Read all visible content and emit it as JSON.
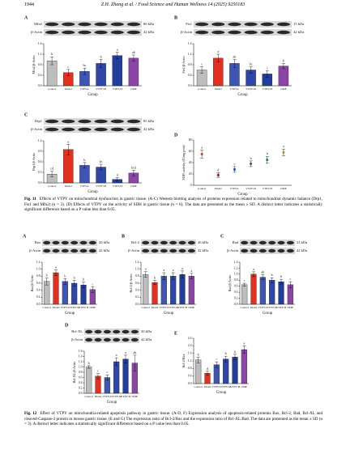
{
  "header": {
    "page": "1944",
    "journal": "Z.H. Zhang et al. / Food Science and Human Wellness 14 (2025) 9250183"
  },
  "figures": [
    {
      "label": "Fig. 11",
      "caption": "Effects of VTPY on mitochondrial dysfunction in gastric tissue. (A-C) Western blotting analysis of proteins expression related to mitochondrial dynamic balance (Drp1, Fis1 and Mfn2) (n = 3). (D) Effects of VTPY on the activity of SDH in gastric tissue (n = 6). The data are presented as the mean ± SD. A distinct letter indicates a statistically significant difference based on a P value less than 0.05."
    },
    {
      "label": "Fig. 12",
      "caption": "Effect of VTPY on mitochondria-related apoptosis pathway in gastric tissue. (A-D, F) Expression analysis of apoptosis-related proteins Bax, Bcl-2, Bad, Bcl-XL and cleaved-Caspase-3 protein in mouse gastric tissue. (E and G) The expression ratio of Bcl-2/Bax and the expression ratio of Bcl-XL/Bad. The data are presented as the mean ± SD (n = 3). A distinct letter indicates a statistically significant difference based on a P value less than 0.05."
    }
  ],
  "chart_data": [
    {
      "type": "bar",
      "panel": "A",
      "blots": [
        {
          "label": "Mfn2",
          "size": "86 kDa"
        },
        {
          "label": "β-Actin",
          "size": "42 kDa"
        }
      ],
      "ylabel": "Mfn2/β-Actin",
      "xlabel": "Group",
      "categories": [
        "Control",
        "Model",
        "VTPY-L",
        "VTPY-M",
        "VTPY-H",
        "OME"
      ],
      "values": [
        0.95,
        0.5,
        0.55,
        0.85,
        1.15,
        1.05
      ],
      "errors": [
        0.15,
        0.12,
        0.12,
        0.15,
        0.12,
        0.12
      ],
      "letters": [
        "b",
        "c",
        "bc",
        "b",
        "a",
        "ab"
      ],
      "colors": [
        "#bdbdbd",
        "#e3301f",
        "#3f55b3",
        "#2f47a8",
        "#223e9c",
        "#8b45a6"
      ],
      "ylim": [
        0,
        1.6
      ],
      "yticks": [
        {
          "value": 0,
          "label": "0.0"
        },
        0.4,
        0.8,
        1.2,
        1.6
      ]
    },
    {
      "type": "bar",
      "panel": "B",
      "blots": [
        {
          "label": "Fis1",
          "size": "15 kDa"
        },
        {
          "label": "β-Actin",
          "size": "42 kDa"
        }
      ],
      "ylabel": "Fis1/β-Actin",
      "xlabel": "Group",
      "categories": [
        "Control",
        "Model",
        "VTPY-L",
        "VTPY-M",
        "VTPY-H",
        "OME"
      ],
      "values": [
        0.6,
        1.05,
        0.85,
        0.6,
        0.45,
        0.75
      ],
      "errors": [
        0.12,
        0.15,
        0.15,
        0.12,
        0.12,
        0.1
      ],
      "letters": [
        "c",
        "a",
        "ab",
        "bc",
        "c",
        "b"
      ],
      "colors": [
        "#bdbdbd",
        "#e3301f",
        "#3f55b3",
        "#2f47a8",
        "#223e9c",
        "#8b45a6"
      ],
      "ylim": [
        0,
        1.6
      ],
      "yticks": [
        {
          "value": 0,
          "label": "0.0"
        },
        0.4,
        0.8,
        1.2,
        1.6
      ]
    },
    {
      "type": "bar",
      "panel": "C",
      "blots": [
        {
          "label": "Drp1",
          "size": "83 kDa"
        },
        {
          "label": "β-Actin",
          "size": "42 kDa"
        }
      ],
      "ylabel": "Drp1/β-Actin",
      "xlabel": "Group",
      "categories": [
        "Control",
        "Model",
        "VTPY-L",
        "VTPY-M",
        "VTPY-H",
        "OME"
      ],
      "values": [
        0.25,
        0.95,
        0.5,
        0.45,
        0.1,
        0.28
      ],
      "errors": [
        0.08,
        0.15,
        0.08,
        0.08,
        0.05,
        0.08
      ],
      "letters": [
        "cd",
        "a",
        "b",
        "bc",
        "d",
        "bcd"
      ],
      "colors": [
        "#bdbdbd",
        "#e3301f",
        "#3f55b3",
        "#2f47a8",
        "#223e9c",
        "#8b45a6"
      ],
      "ylim": [
        0,
        1.2
      ],
      "yticks": [
        {
          "value": 0,
          "label": "0.0"
        },
        0.3,
        0.6,
        0.9,
        1.2
      ]
    },
    {
      "type": "dot",
      "panel": "D",
      "ylabel": "SDH activity (U/mg prot)",
      "xlabel": "Group",
      "categories": [
        "Control",
        "Model",
        "VTPY-L",
        "VTPY-M",
        "VTPY-H",
        "OME"
      ],
      "values": [
        55,
        18,
        28,
        38,
        45,
        58
      ],
      "errors": [
        7,
        4,
        5,
        5,
        6,
        6
      ],
      "letters": [
        "a",
        "d",
        "c",
        "b",
        "b",
        "a"
      ],
      "colors": [
        "#e8603c",
        "#d9262a",
        "#3d6fc4",
        "#7b5bb8",
        "#33a0a0",
        "#e0b030"
      ],
      "ylim": [
        0,
        80
      ],
      "yticks": [
        0,
        20,
        40,
        60,
        80
      ]
    },
    {
      "type": "bar",
      "panel": "A",
      "blots": [
        {
          "label": "Bax",
          "size": "20 kDa"
        },
        {
          "label": "β-Actin",
          "size": "42 kDa"
        }
      ],
      "ylabel": "Bax/β-Actin",
      "xlabel": "Group",
      "categories": [
        "Control",
        "Model",
        "VTPY-L",
        "VTPY-M",
        "VTPY-H",
        "OME"
      ],
      "values": [
        0.65,
        0.9,
        0.65,
        0.6,
        0.55,
        0.42
      ],
      "errors": [
        0.1,
        0.08,
        0.08,
        0.08,
        0.08,
        0.08
      ],
      "letters": [
        "b",
        "a",
        "b",
        "b",
        "b",
        "c"
      ],
      "colors": [
        "#bdbdbd",
        "#e3301f",
        "#3f55b3",
        "#2f47a8",
        "#223e9c",
        "#8b45a6"
      ],
      "ylim": [
        0,
        1.2
      ],
      "yticks": [
        {
          "value": 0,
          "label": "0.0"
        },
        0.2,
        0.4,
        0.6,
        0.8,
        {
          "value": 1,
          "label": "1.0"
        },
        1.2
      ]
    },
    {
      "type": "bar",
      "panel": "B",
      "blots": [
        {
          "label": "Bcl-2",
          "size": "26 kDa"
        },
        {
          "label": "β-Actin",
          "size": "42 kDa"
        }
      ],
      "ylabel": "Bcl-2/β-Actin",
      "xlabel": "Group",
      "categories": [
        "Control",
        "Model",
        "VTPY-L",
        "VTPY-M",
        "VTPY-H",
        "OME"
      ],
      "values": [
        0.85,
        0.62,
        0.8,
        0.8,
        0.85,
        0.8
      ],
      "errors": [
        0.08,
        0.06,
        0.1,
        0.1,
        0.1,
        0.08
      ],
      "letters": [
        "a",
        "b",
        "a",
        "a",
        "a",
        "a"
      ],
      "colors": [
        "#bdbdbd",
        "#e3301f",
        "#3f55b3",
        "#2f47a8",
        "#223e9c",
        "#8b45a6"
      ],
      "ylim": [
        0,
        1.2
      ],
      "yticks": [
        {
          "value": 0,
          "label": "0.0"
        },
        0.2,
        0.4,
        0.6,
        0.8,
        {
          "value": 1,
          "label": "1.0"
        },
        1.2
      ]
    },
    {
      "type": "bar",
      "panel": "C",
      "blots": [
        {
          "label": "Bad",
          "size": "23 kDa"
        },
        {
          "label": "β-Actin",
          "size": "42 kDa"
        }
      ],
      "ylabel": "Bad/β-Actin",
      "xlabel": "Group",
      "categories": [
        "Control",
        "Model",
        "VTPY-L",
        "VTPY-M",
        "VTPY-H",
        "OME"
      ],
      "values": [
        0.65,
        1.0,
        0.9,
        0.8,
        0.75,
        0.65
      ],
      "errors": [
        0.05,
        0.08,
        0.08,
        0.08,
        0.08,
        0.1
      ],
      "letters": [
        "c",
        "a",
        "ab",
        "b",
        "b",
        "c"
      ],
      "colors": [
        "#bdbdbd",
        "#e3301f",
        "#3f55b3",
        "#2f47a8",
        "#223e9c",
        "#8b45a6"
      ],
      "ylim": [
        0,
        1.4
      ],
      "yticks": [
        {
          "value": 0,
          "label": "0.0"
        },
        0.2,
        0.4,
        0.6,
        0.8,
        {
          "value": 1,
          "label": "1.0"
        },
        1.2,
        1.4
      ]
    },
    {
      "type": "bar",
      "panel": "D",
      "blots": [
        {
          "label": "Bcl-XL",
          "size": "30 kDa"
        },
        {
          "label": "β-Actin",
          "size": "42 kDa"
        }
      ],
      "ylabel": "Bcl-XL/β-Actin",
      "xlabel": "Group",
      "categories": [
        "Control",
        "Model",
        "VTPY-L",
        "VTPY-M",
        "VTPY-H",
        "OME"
      ],
      "values": [
        1.0,
        0.65,
        0.6,
        1.2,
        1.3,
        1.15
      ],
      "errors": [
        0.05,
        0.1,
        0.1,
        0.15,
        0.15,
        0.3
      ],
      "letters": [
        "b",
        "c",
        "c",
        "a",
        "a",
        "ab"
      ],
      "colors": [
        "#bdbdbd",
        "#e3301f",
        "#3f55b3",
        "#2f47a8",
        "#223e9c",
        "#8b45a6"
      ],
      "ylim": [
        0,
        1.6
      ],
      "yticks": [
        {
          "value": 0,
          "label": "0.0"
        },
        0.2,
        0.4,
        0.6,
        0.8,
        {
          "value": 1,
          "label": "1.0"
        },
        1.2,
        1.4,
        1.6
      ]
    },
    {
      "type": "bar",
      "panel": "E",
      "ylabel": "Bcl-2/Bax",
      "xlabel": "Group",
      "categories": [
        "Control",
        "Model",
        "VTPY-L",
        "VTPY-M",
        "VTPY-H",
        "OME"
      ],
      "values": [
        1.25,
        0.55,
        1.0,
        1.3,
        1.4,
        1.8
      ],
      "errors": [
        0.15,
        0.1,
        0.15,
        0.15,
        0.15,
        0.2
      ],
      "letters": [
        "b",
        "d",
        "c",
        "b",
        "b",
        "a"
      ],
      "colors": [
        "#bdbdbd",
        "#e3301f",
        "#3f55b3",
        "#2f47a8",
        "#223e9c",
        "#8b45a6"
      ],
      "ylim": [
        0,
        2.4
      ],
      "yticks": [
        {
          "value": 0,
          "label": "0.0"
        },
        0.4,
        0.8,
        1.2,
        1.6,
        {
          "value": 2,
          "label": "2.0"
        },
        2.4
      ]
    }
  ]
}
